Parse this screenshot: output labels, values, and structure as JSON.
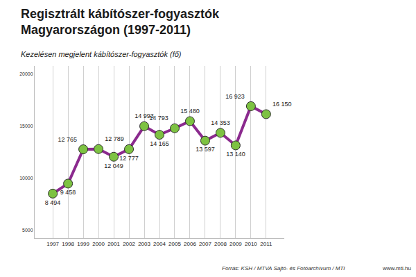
{
  "chart_data": {
    "type": "line",
    "title": "Regisztrált kábítószer-fogyasztók\nMagyarországon (1997-2011)",
    "subtitle": "Kezelésen megjelent kábítószer-fogyasztók (fő)",
    "annotations": [
      "Forrás: KSH / MTVA Sajtó- és Fotóarchívum / MTI",
      "www.mti.hu"
    ],
    "categories": [
      "1997",
      "1998",
      "1999",
      "2000",
      "2001",
      "2002",
      "2003",
      "2004",
      "2005",
      "2006",
      "2007",
      "2008",
      "2009",
      "2010",
      "2011"
    ],
    "values": [
      8494,
      9458,
      12765,
      12789,
      12049,
      12777,
      14993,
      14165,
      14793,
      15480,
      13597,
      14353,
      13140,
      16923,
      16150
    ],
    "value_labels": [
      "8 494",
      "9 458",
      "12 765",
      "12 789",
      "12 049",
      "12 777",
      "14 993",
      "14 165",
      "14 793",
      "15 480",
      "13 597",
      "14 353",
      "13 140",
      "16 923",
      "16 150"
    ],
    "data_labels": true,
    "color": "#8b2a8e",
    "marker": "circle",
    "ylim": [
      4200,
      20800
    ],
    "yticks": [
      5000,
      10000,
      15000,
      20000
    ],
    "grid": true
  }
}
